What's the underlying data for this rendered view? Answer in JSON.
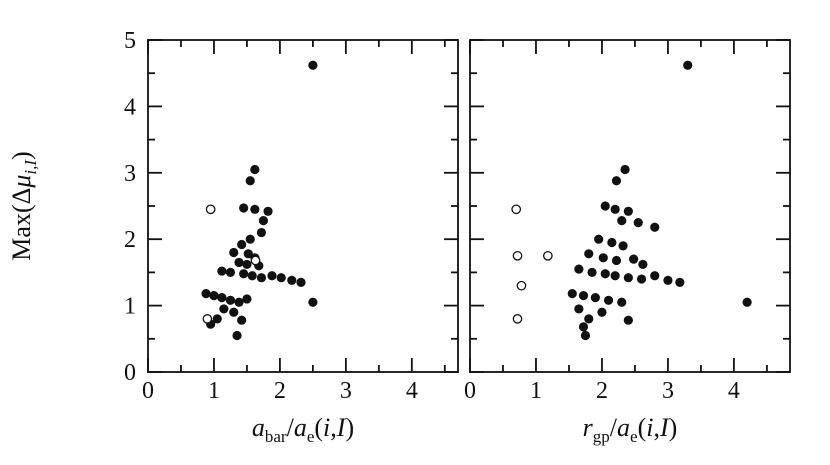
{
  "figure": {
    "background": "#ffffff",
    "ink": "#111111",
    "ylabel": "Max(Δμ_i,I)",
    "ylabel_parts": [
      {
        "t": "Max(",
        "style": "normal"
      },
      {
        "t": "Δ",
        "style": "normal"
      },
      {
        "t": "μ",
        "style": "italic"
      },
      {
        "t": "i,I",
        "style": "sub-italic"
      },
      {
        "t": ")",
        "style": "normal"
      }
    ]
  },
  "chart_data": [
    {
      "type": "scatter",
      "panel": "left",
      "xlabel": "a_bar/a_e(i,I)",
      "xlabel_parts": [
        {
          "t": "a",
          "style": "italic"
        },
        {
          "t": "bar",
          "style": "sub"
        },
        {
          "t": "/",
          "style": "normal"
        },
        {
          "t": "a",
          "style": "italic"
        },
        {
          "t": "e",
          "style": "sub"
        },
        {
          "t": "(",
          "style": "normal"
        },
        {
          "t": "i",
          "style": "italic"
        },
        {
          "t": ",",
          "style": "normal"
        },
        {
          "t": "I",
          "style": "italic"
        },
        {
          "t": ")",
          "style": "normal"
        }
      ],
      "xlim": [
        0,
        4.7
      ],
      "ylim": [
        0,
        5
      ],
      "xticks": [
        0,
        1,
        2,
        3,
        4
      ],
      "yticks": [
        0,
        1,
        2,
        3,
        4,
        5
      ],
      "x_minor_step": 0.5,
      "y_minor_step": 0.5,
      "show_y_tick_labels": true,
      "series": [
        {
          "name": "filled",
          "marker": "filled-circle",
          "points": [
            [
              2.5,
              4.62
            ],
            [
              1.62,
              3.05
            ],
            [
              1.55,
              2.88
            ],
            [
              1.45,
              2.47
            ],
            [
              1.62,
              2.45
            ],
            [
              1.82,
              2.42
            ],
            [
              1.75,
              2.28
            ],
            [
              1.72,
              2.1
            ],
            [
              1.55,
              2.0
            ],
            [
              1.42,
              1.92
            ],
            [
              1.3,
              1.8
            ],
            [
              1.52,
              1.78
            ],
            [
              1.62,
              1.72
            ],
            [
              1.38,
              1.65
            ],
            [
              1.5,
              1.62
            ],
            [
              1.68,
              1.6
            ],
            [
              1.12,
              1.52
            ],
            [
              1.25,
              1.5
            ],
            [
              1.45,
              1.48
            ],
            [
              1.58,
              1.45
            ],
            [
              1.72,
              1.42
            ],
            [
              1.88,
              1.45
            ],
            [
              2.02,
              1.42
            ],
            [
              2.18,
              1.38
            ],
            [
              2.32,
              1.35
            ],
            [
              0.88,
              1.18
            ],
            [
              1.0,
              1.15
            ],
            [
              1.12,
              1.12
            ],
            [
              1.25,
              1.08
            ],
            [
              1.38,
              1.05
            ],
            [
              1.5,
              1.1
            ],
            [
              1.15,
              0.95
            ],
            [
              1.3,
              0.9
            ],
            [
              1.05,
              0.8
            ],
            [
              0.95,
              0.72
            ],
            [
              1.42,
              0.78
            ],
            [
              2.5,
              1.05
            ],
            [
              1.35,
              0.55
            ]
          ]
        },
        {
          "name": "open",
          "marker": "open-circle",
          "points": [
            [
              0.95,
              2.45
            ],
            [
              1.63,
              1.68
            ],
            [
              0.9,
              0.8
            ]
          ]
        }
      ]
    },
    {
      "type": "scatter",
      "panel": "right",
      "xlabel": "r_gp/a_e(i,I)",
      "xlabel_parts": [
        {
          "t": "r",
          "style": "italic"
        },
        {
          "t": "gp",
          "style": "sub"
        },
        {
          "t": "/",
          "style": "normal"
        },
        {
          "t": "a",
          "style": "italic"
        },
        {
          "t": "e",
          "style": "sub"
        },
        {
          "t": "(",
          "style": "normal"
        },
        {
          "t": "i",
          "style": "italic"
        },
        {
          "t": ",",
          "style": "normal"
        },
        {
          "t": "I",
          "style": "italic"
        },
        {
          "t": ")",
          "style": "normal"
        }
      ],
      "xlim": [
        0,
        4.85
      ],
      "ylim": [
        0,
        5
      ],
      "xticks": [
        0,
        1,
        2,
        3,
        4
      ],
      "yticks": [
        0,
        1,
        2,
        3,
        4,
        5
      ],
      "x_minor_step": 0.5,
      "y_minor_step": 0.5,
      "show_y_tick_labels": false,
      "series": [
        {
          "name": "filled",
          "marker": "filled-circle",
          "points": [
            [
              3.3,
              4.62
            ],
            [
              2.35,
              3.05
            ],
            [
              2.22,
              2.88
            ],
            [
              2.05,
              2.5
            ],
            [
              2.2,
              2.45
            ],
            [
              2.4,
              2.42
            ],
            [
              2.3,
              2.28
            ],
            [
              2.55,
              2.25
            ],
            [
              2.8,
              2.18
            ],
            [
              1.95,
              2.0
            ],
            [
              2.15,
              1.95
            ],
            [
              2.32,
              1.9
            ],
            [
              1.8,
              1.78
            ],
            [
              2.02,
              1.72
            ],
            [
              2.22,
              1.68
            ],
            [
              2.48,
              1.7
            ],
            [
              2.62,
              1.62
            ],
            [
              1.65,
              1.55
            ],
            [
              1.85,
              1.5
            ],
            [
              2.05,
              1.48
            ],
            [
              2.2,
              1.45
            ],
            [
              2.4,
              1.42
            ],
            [
              2.6,
              1.4
            ],
            [
              2.8,
              1.45
            ],
            [
              3.0,
              1.38
            ],
            [
              3.18,
              1.35
            ],
            [
              1.55,
              1.18
            ],
            [
              1.72,
              1.15
            ],
            [
              1.9,
              1.12
            ],
            [
              2.1,
              1.08
            ],
            [
              2.3,
              1.05
            ],
            [
              1.65,
              0.95
            ],
            [
              2.0,
              0.9
            ],
            [
              1.8,
              0.8
            ],
            [
              2.4,
              0.78
            ],
            [
              4.2,
              1.05
            ],
            [
              1.72,
              0.68
            ],
            [
              1.75,
              0.55
            ]
          ]
        },
        {
          "name": "open",
          "marker": "open-circle",
          "points": [
            [
              0.7,
              2.45
            ],
            [
              0.72,
              1.75
            ],
            [
              1.18,
              1.75
            ],
            [
              0.78,
              1.3
            ],
            [
              0.72,
              0.8
            ]
          ]
        }
      ]
    }
  ]
}
